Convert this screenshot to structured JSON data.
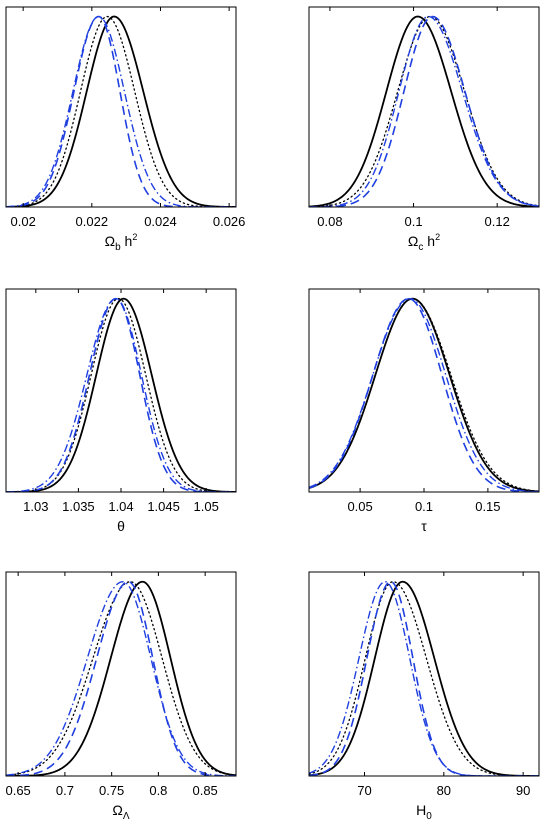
{
  "chart_data": [
    {
      "type": "line",
      "xlabel": {
        "main": "Ω",
        "sub": "b",
        "after": " h",
        "sup": "2"
      },
      "xlim": [
        0.0195,
        0.0262
      ],
      "ylim": [
        0,
        1.05
      ],
      "xticks": [
        0.02,
        0.022,
        0.024,
        0.026
      ],
      "xtick_labels": [
        "0.02",
        "0.022",
        "0.024",
        "0.026"
      ],
      "series": [
        {
          "style": "solid",
          "color": "#000000",
          "mean": 0.02265,
          "sigL": 0.0008,
          "sigR": 0.00085
        },
        {
          "style": "dotted",
          "color": "#000000",
          "mean": 0.02245,
          "sigL": 0.00078,
          "sigR": 0.0008
        },
        {
          "style": "dashed",
          "color": "#1f3fe0",
          "mean": 0.0222,
          "sigL": 0.00072,
          "sigR": 0.00062
        },
        {
          "style": "dashdot",
          "color": "#1f3fe0",
          "mean": 0.0222,
          "sigL": 0.00075,
          "sigR": 0.00075
        }
      ]
    },
    {
      "type": "line",
      "xlabel": {
        "main": "Ω",
        "sub": "c",
        "after": " h",
        "sup": "2"
      },
      "xlim": [
        0.075,
        0.13
      ],
      "ylim": [
        0,
        1.05
      ],
      "xticks": [
        0.08,
        0.1,
        0.12
      ],
      "xtick_labels": [
        "0.08",
        "0.1",
        "0.12"
      ],
      "series": [
        {
          "style": "solid",
          "color": "#000000",
          "mean": 0.101,
          "sigL": 0.0075,
          "sigR": 0.008
        },
        {
          "style": "dotted",
          "color": "#000000",
          "mean": 0.104,
          "sigL": 0.0078,
          "sigR": 0.0082
        },
        {
          "style": "dashed",
          "color": "#1f3fe0",
          "mean": 0.1045,
          "sigL": 0.0068,
          "sigR": 0.0078
        },
        {
          "style": "dashdot",
          "color": "#1f3fe0",
          "mean": 0.1035,
          "sigL": 0.007,
          "sigR": 0.0082
        }
      ]
    },
    {
      "type": "line",
      "xlabel": {
        "main": "θ",
        "sub": "",
        "after": "",
        "sup": ""
      },
      "xlim": [
        1.0265,
        1.0535
      ],
      "ylim": [
        0,
        1.05
      ],
      "xticks": [
        1.03,
        1.035,
        1.04,
        1.045,
        1.05
      ],
      "xtick_labels": [
        "1.03",
        "1.035",
        "1.04",
        "1.045",
        "1.05"
      ],
      "series": [
        {
          "style": "solid",
          "color": "#000000",
          "mean": 1.0403,
          "sigL": 0.0032,
          "sigR": 0.0033
        },
        {
          "style": "dotted",
          "color": "#000000",
          "mean": 1.0397,
          "sigL": 0.0032,
          "sigR": 0.0032
        },
        {
          "style": "dashed",
          "color": "#1f3fe0",
          "mean": 1.0394,
          "sigL": 0.0031,
          "sigR": 0.0028
        },
        {
          "style": "dashdot",
          "color": "#1f3fe0",
          "mean": 1.0394,
          "sigL": 0.0034,
          "sigR": 0.003
        }
      ]
    },
    {
      "type": "line",
      "xlabel": {
        "main": "τ",
        "sub": "",
        "after": "",
        "sup": ""
      },
      "xlim": [
        0.01,
        0.19
      ],
      "ylim": [
        0,
        1.05
      ],
      "xticks": [
        0.05,
        0.1,
        0.15
      ],
      "xtick_labels": [
        "0.05",
        "0.1",
        "0.15"
      ],
      "series": [
        {
          "style": "solid",
          "color": "#000000",
          "mean": 0.091,
          "sigL": 0.029,
          "sigR": 0.029
        },
        {
          "style": "dotted",
          "color": "#000000",
          "mean": 0.091,
          "sigL": 0.029,
          "sigR": 0.03
        },
        {
          "style": "dashed",
          "color": "#1f3fe0",
          "mean": 0.088,
          "sigL": 0.028,
          "sigR": 0.026
        },
        {
          "style": "dashdot",
          "color": "#1f3fe0",
          "mean": 0.089,
          "sigL": 0.029,
          "sigR": 0.028
        }
      ]
    },
    {
      "type": "line",
      "xlabel": {
        "main": "Ω",
        "sub": "Λ",
        "after": "",
        "sup": ""
      },
      "xlim": [
        0.637,
        0.883
      ],
      "ylim": [
        0,
        1.05
      ],
      "xticks": [
        0.65,
        0.7,
        0.75,
        0.8,
        0.85
      ],
      "xtick_labels": [
        "0.65",
        "0.7",
        "0.75",
        "0.8",
        "0.85"
      ],
      "series": [
        {
          "style": "solid",
          "color": "#000000",
          "mean": 0.783,
          "sigL": 0.034,
          "sigR": 0.03
        },
        {
          "style": "dotted",
          "color": "#000000",
          "mean": 0.77,
          "sigL": 0.04,
          "sigR": 0.034
        },
        {
          "style": "dashed",
          "color": "#1f3fe0",
          "mean": 0.768,
          "sigL": 0.034,
          "sigR": 0.026
        },
        {
          "style": "dashdot",
          "color": "#1f3fe0",
          "mean": 0.762,
          "sigL": 0.038,
          "sigR": 0.03
        }
      ]
    },
    {
      "type": "line",
      "xlabel": {
        "main": "H",
        "sub": "0",
        "after": "",
        "sup": ""
      },
      "xlim": [
        63,
        92
      ],
      "ylim": [
        0,
        1.05
      ],
      "xticks": [
        70,
        80,
        90
      ],
      "xtick_labels": [
        "70",
        "80",
        "90"
      ],
      "series": [
        {
          "style": "solid",
          "color": "#000000",
          "mean": 74.8,
          "sigL": 3.5,
          "sigR": 4.0
        },
        {
          "style": "dotted",
          "color": "#000000",
          "mean": 73.6,
          "sigL": 3.5,
          "sigR": 4.2
        },
        {
          "style": "dashed",
          "color": "#1f3fe0",
          "mean": 73.3,
          "sigL": 3.0,
          "sigR": 2.8
        },
        {
          "style": "dashdot",
          "color": "#1f3fe0",
          "mean": 72.6,
          "sigL": 3.3,
          "sigR": 3.1
        }
      ]
    }
  ]
}
